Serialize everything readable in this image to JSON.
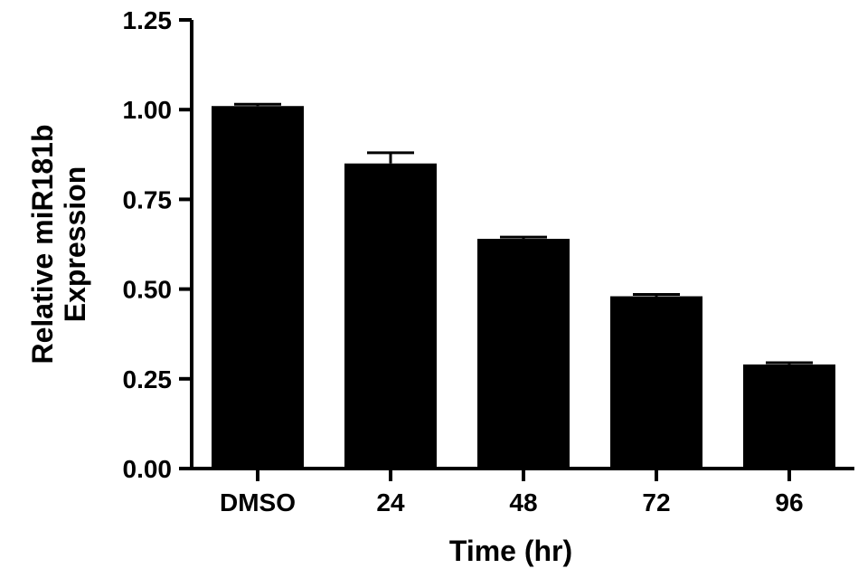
{
  "chart_data": {
    "type": "bar",
    "title": "",
    "xlabel": "Time (hr)",
    "ylabel_lines": [
      "Relative miR181b",
      "Expression"
    ],
    "categories": [
      "DMSO",
      "24",
      "48",
      "72",
      "96"
    ],
    "values": [
      1.01,
      0.85,
      0.64,
      0.48,
      0.29
    ],
    "errors": [
      0.005,
      0.03,
      0.005,
      0.005,
      0.005
    ],
    "ylim": [
      0,
      1.25
    ],
    "yticks": [
      "0.00",
      "0.25",
      "0.50",
      "0.75",
      "1.00",
      "1.25"
    ],
    "grid": false,
    "bar_color": "#000000"
  }
}
